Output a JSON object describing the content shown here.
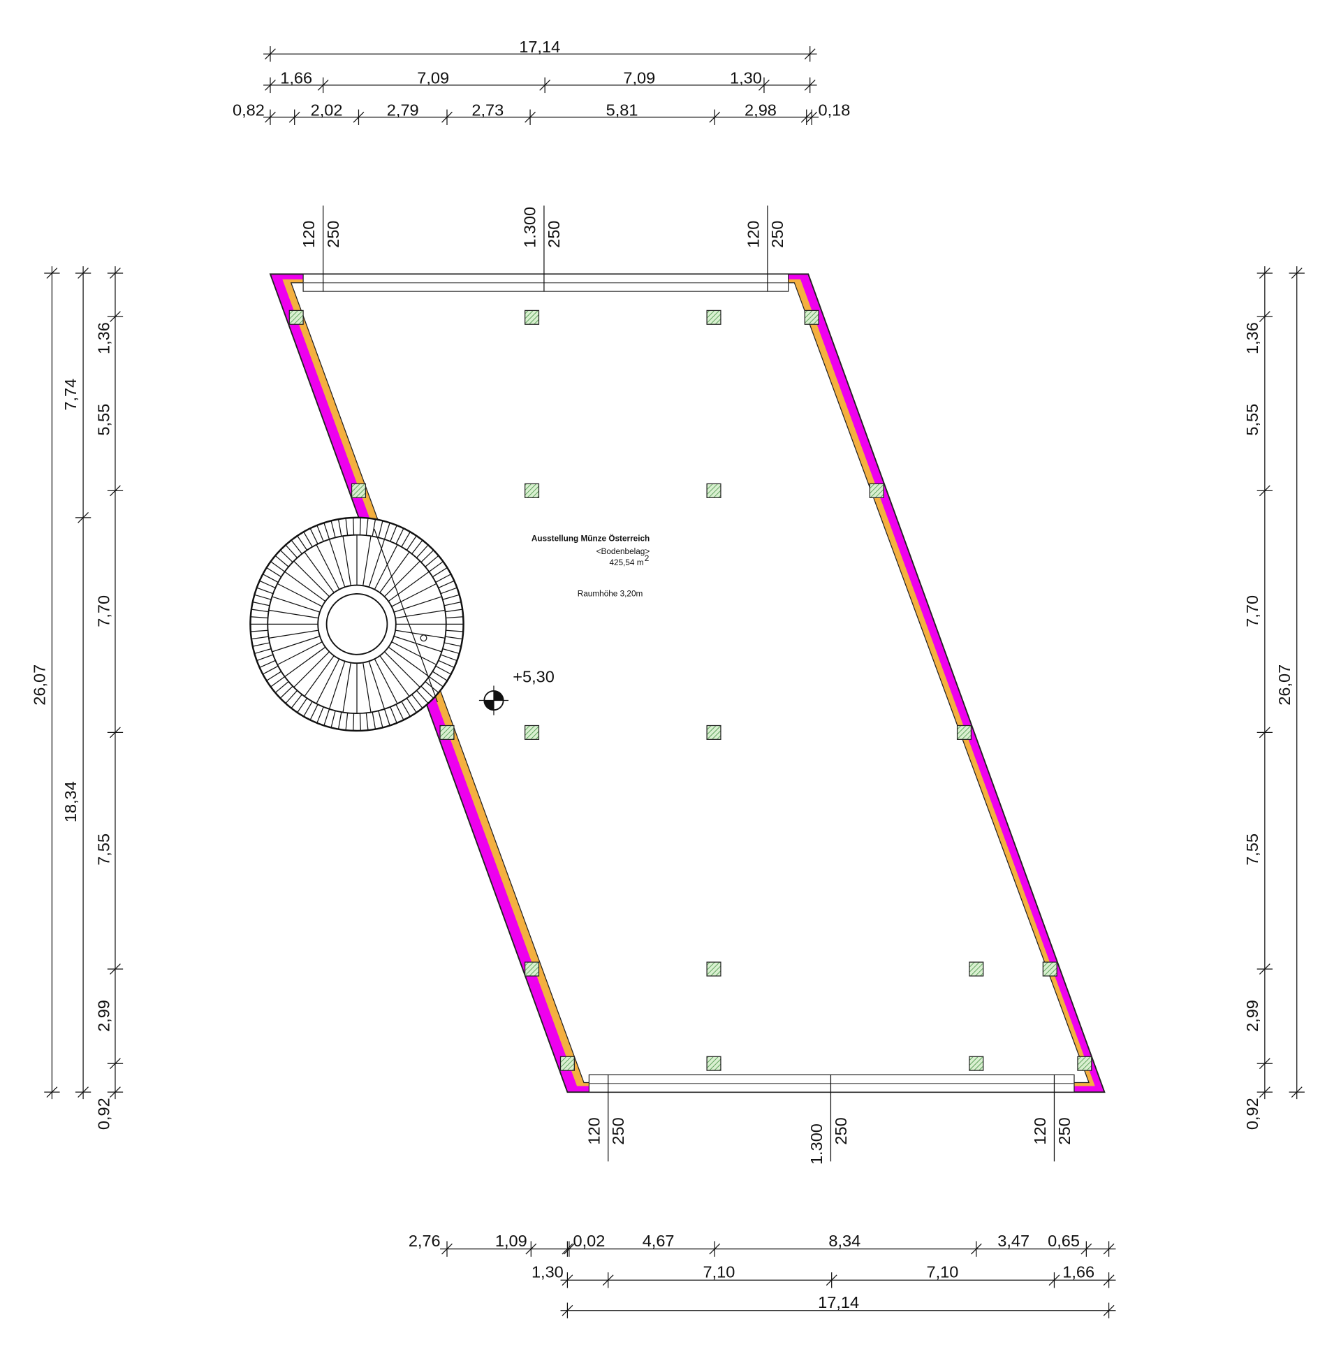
{
  "top_dimensions": {
    "overall": "17,14",
    "row2": [
      "1,66",
      "7,09",
      "7,09",
      "1,30"
    ],
    "row3": [
      "0,82",
      "2,02",
      "2,79",
      "2,73",
      "5,81",
      "2,98",
      "0,18"
    ]
  },
  "bottom_dimensions": {
    "row1": [
      "2,76",
      "1,09",
      "0,02",
      "4,67",
      "8,34",
      "3,47",
      "0,65"
    ],
    "row2": [
      "1,30",
      "7,10",
      "7,10",
      "1,66"
    ],
    "overall": "17,14"
  },
  "left_dimensions": {
    "overall": "26,07",
    "row2": [
      "7,74",
      "18,34"
    ],
    "row3": [
      "1,36",
      "5,55",
      "7,70",
      "7,55",
      "2,99",
      "0,92"
    ]
  },
  "right_dimensions": {
    "overall": "26,07",
    "row": [
      "1,36",
      "5,55",
      "7,70",
      "7,55",
      "2,99",
      "0,92"
    ]
  },
  "window_labels": {
    "top": [
      [
        "120",
        "250"
      ],
      [
        "1.300",
        "250"
      ],
      [
        "120",
        "250"
      ]
    ],
    "bottom": [
      [
        "120",
        "250"
      ],
      [
        "1.300",
        "250"
      ],
      [
        "120",
        "250"
      ]
    ]
  },
  "room": {
    "name": "Ausstellung Münze Österreich",
    "floor": "<Bodenbelag>",
    "area": "425,54 m",
    "area_unit_exponent": "2",
    "height": "Raumhöhe 3,20m"
  },
  "level": "+5,30"
}
